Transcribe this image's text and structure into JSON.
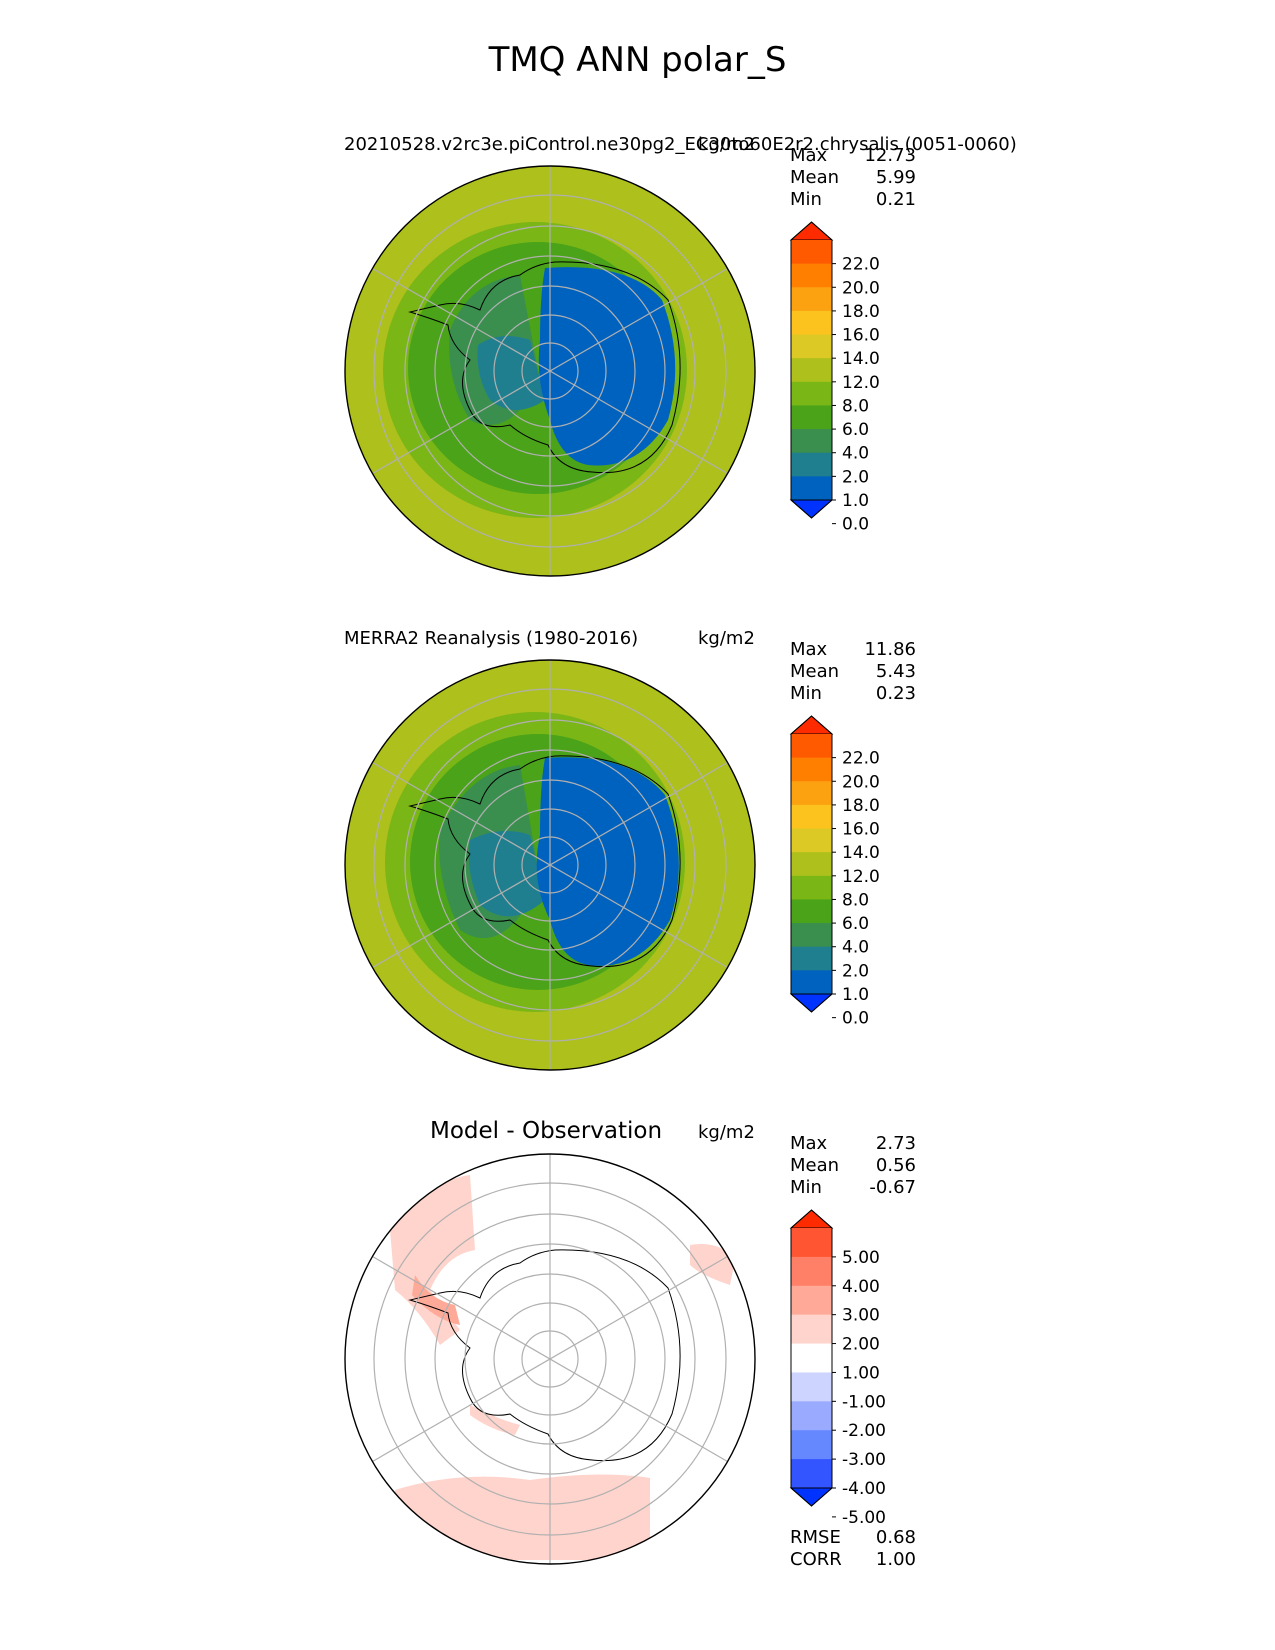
{
  "title": "TMQ ANN polar_S",
  "units": "kg/m2",
  "colors": {
    "seq": [
      "#0033ff",
      "#0062bf",
      "#1f7f8f",
      "#3a8f4f",
      "#4aa318",
      "#7bb617",
      "#adc01c",
      "#dcc925",
      "#fcc31e",
      "#fca211",
      "#ff8000",
      "#ff5a00",
      "#ff2b00"
    ],
    "diff": [
      "#0033ff",
      "#3355ff",
      "#6688ff",
      "#99aaff",
      "#ccd4ff",
      "#ffffff",
      "#ffd4cc",
      "#ffaa99",
      "#ff8066",
      "#ff5533",
      "#ff2b00"
    ]
  },
  "chart_data": [
    {
      "type": "heatmap",
      "projection": "south-polar-stereographic",
      "title": "20210528.v2rc3e.piControl.ne30pg2_EC30to60E2r2.chrysalis (0051-0060)",
      "units": "kg/m2",
      "stats": {
        "Max": "12.73",
        "Mean": "5.99",
        "Min": "0.21"
      },
      "colorbar_ticks": [
        "22.0",
        "20.0",
        "18.0",
        "16.0",
        "14.0",
        "12.0",
        "8.0",
        "6.0",
        "4.0",
        "2.0",
        "1.0",
        "0.0"
      ],
      "contour_levels": [
        0,
        1,
        2,
        4,
        6,
        8,
        12,
        14,
        16,
        18,
        20,
        22
      ]
    },
    {
      "type": "heatmap",
      "projection": "south-polar-stereographic",
      "title": "MERRA2 Reanalysis (1980-2016)",
      "units": "kg/m2",
      "stats": {
        "Max": "11.86",
        "Mean": "5.43",
        "Min": "0.23"
      },
      "colorbar_ticks": [
        "22.0",
        "20.0",
        "18.0",
        "16.0",
        "14.0",
        "12.0",
        "8.0",
        "6.0",
        "4.0",
        "2.0",
        "1.0",
        "0.0"
      ],
      "contour_levels": [
        0,
        1,
        2,
        4,
        6,
        8,
        12,
        14,
        16,
        18,
        20,
        22
      ]
    },
    {
      "type": "heatmap",
      "projection": "south-polar-stereographic",
      "title": "Model - Observation",
      "units": "kg/m2",
      "stats": {
        "Max": "2.73",
        "Mean": "0.56",
        "Min": "-0.67"
      },
      "colorbar_ticks": [
        "5.00",
        "4.00",
        "3.00",
        "2.00",
        "1.00",
        "-1.00",
        "-2.00",
        "-3.00",
        "-4.00",
        "-5.00"
      ],
      "contour_levels": [
        -5,
        -4,
        -3,
        -2,
        -1,
        1,
        2,
        3,
        4,
        5
      ],
      "metrics": {
        "RMSE": "0.68",
        "CORR": "1.00"
      }
    }
  ]
}
